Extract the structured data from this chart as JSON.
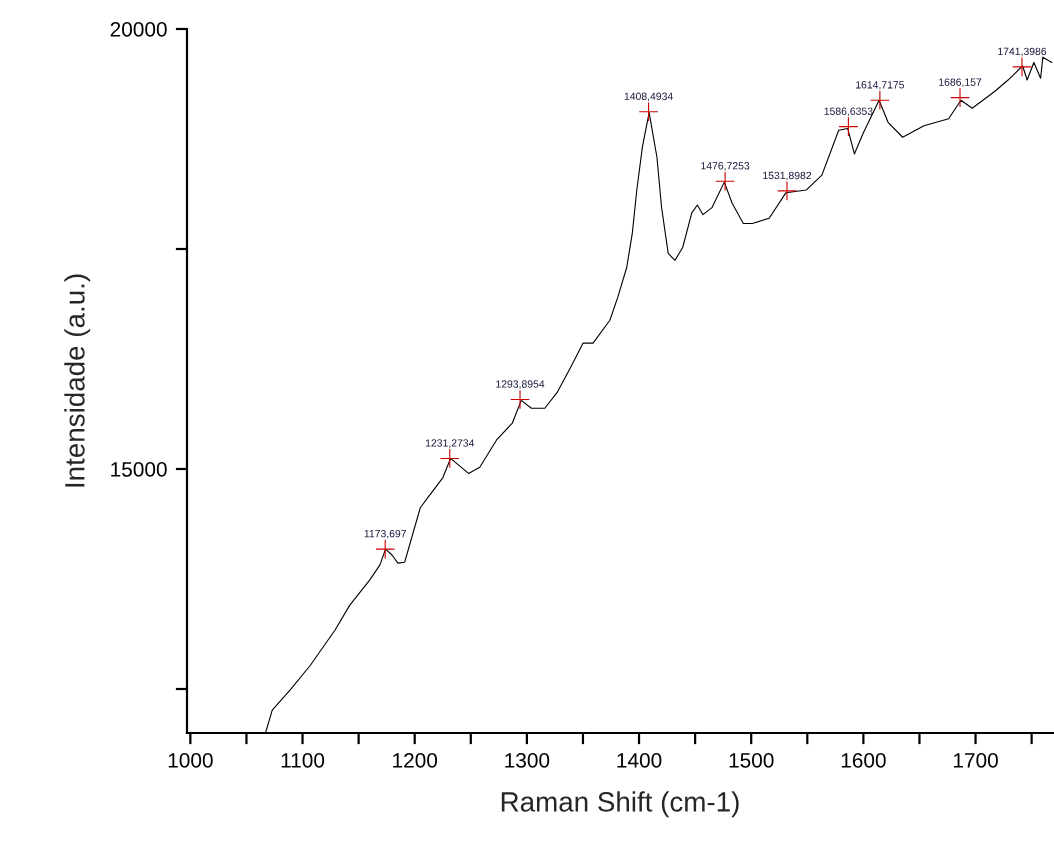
{
  "chart_data": {
    "type": "line",
    "xlabel": "Raman Shift (cm-1)",
    "ylabel": "Intensidade (a.u.)",
    "xlim": [
      997,
      1769
    ],
    "ylim": [
      12000,
      20000
    ],
    "xticks": [
      1000,
      {
        "value": 1050,
        "label": null
      },
      1100,
      {
        "value": 1150,
        "label": null
      },
      1200,
      {
        "value": 1250,
        "label": null
      },
      1300,
      {
        "value": 1350,
        "label": null
      },
      1400,
      {
        "value": 1450,
        "label": null
      },
      1500,
      {
        "value": 1550,
        "label": null
      },
      1600,
      {
        "value": 1650,
        "label": null
      },
      1700,
      {
        "value": 1750,
        "label": null
      }
    ],
    "yticks": [
      {
        "value": 12500,
        "label": null
      },
      15000,
      {
        "value": 17500,
        "label": null
      },
      20000
    ],
    "grid": false,
    "legend": false,
    "series": [
      {
        "color": "#000000",
        "x": [
          1067,
          1073,
          1089,
          1107,
          1129,
          1142,
          1160,
          1169,
          1174,
          1180,
          1185,
          1191,
          1198,
          1205,
          1212,
          1225,
          1232,
          1248,
          1258,
          1273,
          1287,
          1295,
          1304,
          1316,
          1327,
          1340,
          1350,
          1359,
          1374,
          1381,
          1389,
          1394,
          1398,
          1403,
          1409,
          1416,
          1420,
          1426,
          1432,
          1439,
          1447,
          1452,
          1457,
          1465,
          1476,
          1483,
          1493,
          1501,
          1516,
          1531,
          1549,
          1563,
          1578,
          1586,
          1592,
          1600,
          1614,
          1622,
          1635,
          1654,
          1676,
          1687,
          1697,
          1717,
          1729,
          1742,
          1746,
          1752,
          1758,
          1760,
          1768
        ],
        "values": [
          12000,
          12260,
          12490,
          12770,
          13170,
          13450,
          13740,
          13910,
          14090,
          14020,
          13930,
          13940,
          14250,
          14560,
          14680,
          14900,
          15120,
          14950,
          15020,
          15330,
          15520,
          15780,
          15690,
          15690,
          15870,
          16180,
          16430,
          16430,
          16690,
          16950,
          17290,
          17680,
          18170,
          18660,
          19050,
          18540,
          17980,
          17450,
          17370,
          17520,
          17910,
          18000,
          17890,
          17970,
          18260,
          18020,
          17790,
          17790,
          17850,
          18140,
          18170,
          18340,
          18850,
          18870,
          18580,
          18820,
          19190,
          18940,
          18770,
          18900,
          18980,
          19190,
          19100,
          19290,
          19420,
          19580,
          19420,
          19620,
          19440,
          19680,
          19620
        ]
      },
      {
        "type": "scatter",
        "color": "#cc0000",
        "marker": "cross",
        "x": [
          1173.697,
          1231.2734,
          1293.8954,
          1408.4934,
          1476.7253,
          1531.8982,
          1586.6353,
          1614.7175,
          1686.157,
          1741.3986
        ],
        "values": [
          14090,
          15120,
          15790,
          19060,
          18270,
          18160,
          18890,
          19190,
          19220,
          19570
        ],
        "value_labels": [
          "1173,697",
          "1231,2734",
          "1293,8954",
          "1408,4934",
          "1476,7253",
          "1531,8982",
          "1586,6353",
          "1614,7175",
          "1686,157",
          "1741,3986"
        ]
      }
    ]
  }
}
